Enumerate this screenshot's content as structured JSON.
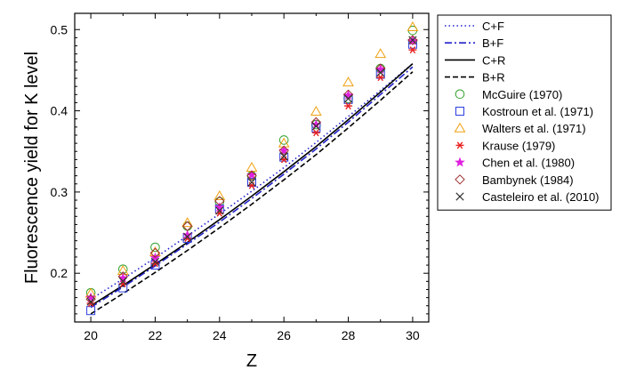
{
  "chart_data": {
    "type": "scatter",
    "xlabel": "Z",
    "ylabel": "Fluorescence yield for K level",
    "xlim": [
      19.5,
      30.5
    ],
    "ylim": [
      0.14,
      0.52
    ],
    "x_ticks": [
      20,
      22,
      24,
      26,
      28,
      30
    ],
    "y_ticks": [
      0.2,
      0.3,
      0.4,
      0.5
    ],
    "x_tick_labels": [
      "20",
      "22",
      "24",
      "26",
      "28",
      "30"
    ],
    "y_tick_labels": [
      "0.2",
      "0.3",
      "0.4",
      "0.5"
    ],
    "legend_position": "outside-right-top",
    "lines": [
      {
        "name": "C+F",
        "style": "dotted",
        "color": "#2222cc",
        "x": [
          20,
          21,
          22,
          23,
          24,
          25,
          26,
          27,
          28,
          29,
          30
        ],
        "y": [
          0.168,
          0.193,
          0.219,
          0.246,
          0.273,
          0.301,
          0.33,
          0.361,
          0.393,
          0.425,
          0.458
        ]
      },
      {
        "name": "B+F",
        "style": "dashdot",
        "color": "#2222cc",
        "x": [
          20,
          21,
          22,
          23,
          24,
          25,
          26,
          27,
          28,
          29,
          30
        ],
        "y": [
          0.158,
          0.183,
          0.209,
          0.236,
          0.263,
          0.292,
          0.322,
          0.353,
          0.386,
          0.42,
          0.454
        ]
      },
      {
        "name": "C+R",
        "style": "solid",
        "color": "#000000",
        "x": [
          20,
          21,
          22,
          23,
          24,
          25,
          26,
          27,
          28,
          29,
          30
        ],
        "y": [
          0.16,
          0.185,
          0.211,
          0.238,
          0.266,
          0.295,
          0.325,
          0.356,
          0.389,
          0.423,
          0.458
        ]
      },
      {
        "name": "B+R",
        "style": "dashed",
        "color": "#000000",
        "x": [
          20,
          21,
          22,
          23,
          24,
          25,
          26,
          27,
          28,
          29,
          30
        ],
        "y": [
          0.15,
          0.175,
          0.201,
          0.228,
          0.256,
          0.285,
          0.315,
          0.346,
          0.379,
          0.413,
          0.448
        ]
      }
    ],
    "series": [
      {
        "name": "McGuire (1970)",
        "marker": "circle",
        "color": "#33a02c",
        "x": [
          20,
          21,
          22,
          23,
          24,
          25,
          26,
          27,
          28,
          29,
          30
        ],
        "y": [
          0.176,
          0.205,
          0.232,
          0.258,
          0.288,
          0.32,
          0.364,
          0.383,
          0.415,
          0.452,
          0.499
        ]
      },
      {
        "name": "Kostroun et al. (1971)",
        "marker": "square",
        "color": "#2c3ee0",
        "x": [
          20,
          21,
          22,
          23,
          24,
          25,
          26,
          27,
          28,
          29,
          30
        ],
        "y": [
          0.154,
          0.182,
          0.21,
          0.243,
          0.279,
          0.312,
          0.343,
          0.379,
          0.414,
          0.445,
          0.482
        ]
      },
      {
        "name": "Walters et al. (1971)",
        "marker": "triangle",
        "color": "#f0a010",
        "x": [
          20,
          21,
          22,
          23,
          24,
          25,
          26,
          27,
          28,
          29,
          30
        ],
        "y": [
          0.175,
          0.203,
          0.226,
          0.262,
          0.295,
          0.33,
          0.36,
          0.399,
          0.435,
          0.47,
          0.503
        ]
      },
      {
        "name": "Krause (1979)",
        "marker": "asterisk",
        "color": "#e82020",
        "x": [
          20,
          21,
          22,
          23,
          24,
          25,
          26,
          27,
          28,
          29,
          30
        ],
        "y": [
          0.163,
          0.187,
          0.212,
          0.243,
          0.274,
          0.308,
          0.34,
          0.373,
          0.406,
          0.441,
          0.475
        ]
      },
      {
        "name": "Chen et al. (1980)",
        "marker": "star",
        "color": "#e020e0",
        "x": [
          20,
          21,
          22,
          23,
          24,
          25,
          26,
          27,
          28,
          29,
          30
        ],
        "y": [
          0.17,
          0.194,
          0.219,
          0.247,
          0.281,
          0.321,
          0.351,
          0.383,
          0.419,
          0.451,
          0.486
        ]
      },
      {
        "name": "Bambynek (1984)",
        "marker": "diamond",
        "color": "#9b2c2c",
        "x": [
          20,
          21,
          22,
          23,
          24,
          25,
          26,
          27,
          28,
          29,
          30
        ],
        "y": [
          0.168,
          0.196,
          0.225,
          0.258,
          0.289,
          0.32,
          0.351,
          0.386,
          0.42,
          0.452,
          0.487
        ]
      },
      {
        "name": "Casteleiro et al. (2010)",
        "marker": "cross",
        "color": "#333333",
        "x": [
          20,
          21,
          22,
          23,
          24,
          25,
          26,
          27,
          28,
          29,
          30
        ],
        "y": [
          0.165,
          0.19,
          0.214,
          0.245,
          0.277,
          0.312,
          0.344,
          0.381,
          0.415,
          0.447,
          0.487
        ]
      }
    ]
  }
}
